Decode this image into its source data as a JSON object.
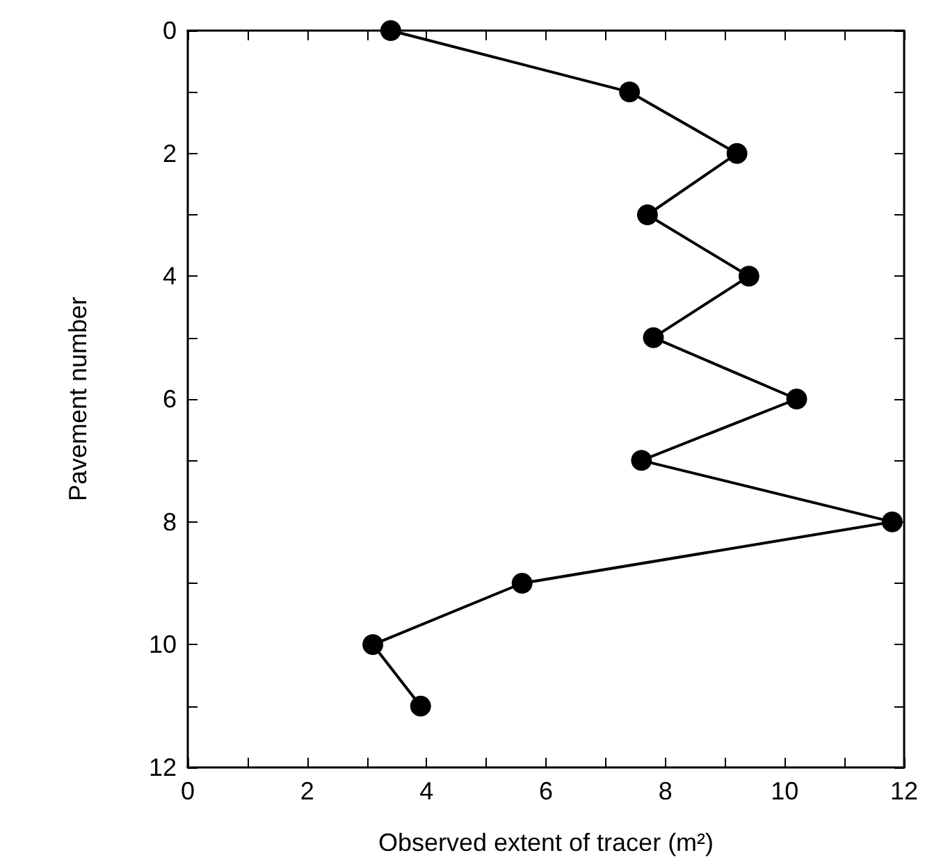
{
  "chart_data": {
    "type": "line",
    "xlabel": "Observed extent of tracer (m²)",
    "ylabel": "Pavement number",
    "x": [
      3.4,
      7.4,
      9.2,
      7.7,
      9.4,
      7.8,
      10.2,
      7.6,
      11.8,
      5.6,
      3.1,
      3.9
    ],
    "values": [
      0,
      1,
      2,
      3,
      4,
      5,
      6,
      7,
      8,
      9,
      10,
      11
    ],
    "color": "#000000",
    "marker": "circle",
    "line_style": "solid",
    "xlim": [
      0,
      12
    ],
    "ylim": [
      12,
      0
    ],
    "xticks": [
      0,
      {
        "value": 1,
        "label": null
      },
      2,
      {
        "value": 3,
        "label": null
      },
      4,
      {
        "value": 5,
        "label": null
      },
      6,
      {
        "value": 7,
        "label": null
      },
      8,
      {
        "value": 9,
        "label": null
      },
      10,
      {
        "value": 11,
        "label": null
      },
      12
    ],
    "yticks": [
      0,
      {
        "value": 1,
        "label": null
      },
      2,
      {
        "value": 3,
        "label": null
      },
      4,
      {
        "value": 5,
        "label": null
      },
      6,
      {
        "value": 7,
        "label": null
      },
      8,
      {
        "value": 9,
        "label": null
      },
      10,
      {
        "value": 11,
        "label": null
      },
      12
    ]
  }
}
